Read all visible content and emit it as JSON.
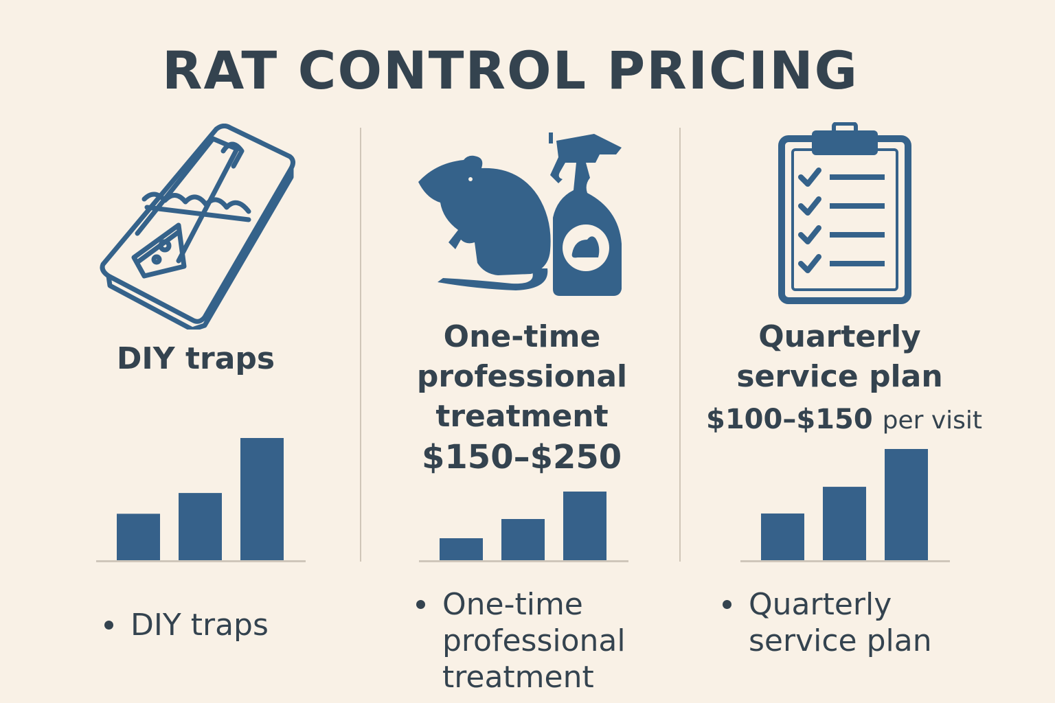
{
  "title": "RAT CONTROL PRICING",
  "colors": {
    "icon": "#35628a",
    "bar": "#36618a",
    "text": "#34434f",
    "background": "#f9f1e6",
    "baseline": "#cfc6ba"
  },
  "columns": [
    {
      "icon": "mousetrap-icon",
      "heading_lines": [
        "DIY traps"
      ],
      "price": "",
      "price_unit": "",
      "bullet_lines": [
        "DIY traps"
      ]
    },
    {
      "icon": "rat-and-spray-bottle-icon",
      "heading_lines": [
        "One-time",
        "professional",
        "treatment"
      ],
      "price": "$150–$250",
      "price_unit": "",
      "bullet_lines": [
        "One-time",
        "professional",
        "treatment"
      ]
    },
    {
      "icon": "clipboard-checklist-icon",
      "heading_lines": [
        "Quarterly",
        "service plan"
      ],
      "price": "$100–$150",
      "price_unit": "per visit",
      "bullet_lines": [
        "Quarterly",
        "service plan"
      ]
    }
  ],
  "chart_data": [
    {
      "type": "bar",
      "categories": [
        "",
        "",
        ""
      ],
      "values": [
        38,
        55,
        100
      ],
      "ylim": [
        0,
        100
      ]
    },
    {
      "type": "bar",
      "categories": [
        "",
        "",
        ""
      ],
      "values": [
        32,
        60,
        100
      ],
      "ylim": [
        0,
        100
      ]
    },
    {
      "type": "bar",
      "categories": [
        "",
        "",
        ""
      ],
      "values": [
        42,
        66,
        100
      ],
      "ylim": [
        0,
        100
      ]
    }
  ]
}
